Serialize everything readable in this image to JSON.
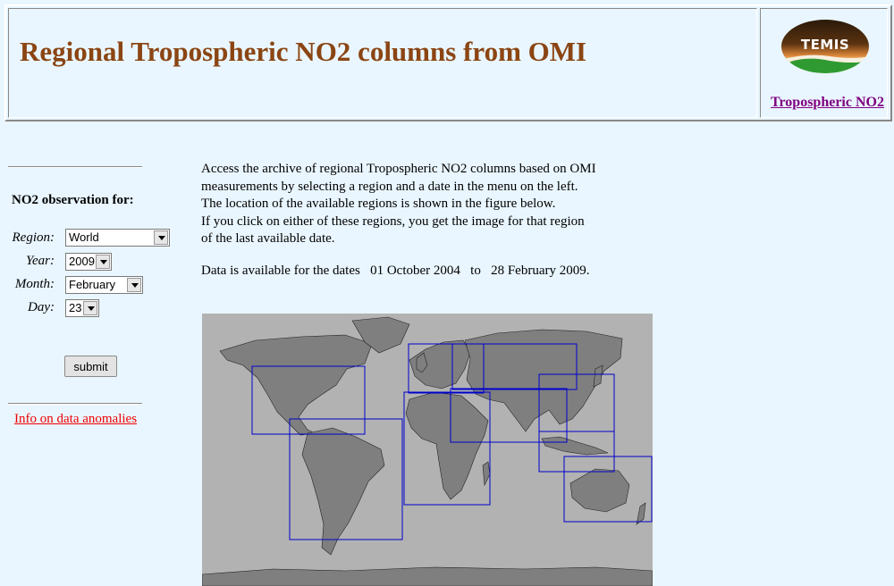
{
  "header": {
    "title": "Regional Tropospheric NO2 columns from OMI",
    "logo_text": "TEMIS",
    "link": "Tropospheric NO2"
  },
  "sidebar": {
    "title": "NO2 observation for:",
    "fields": {
      "region": {
        "label": "Region:",
        "value": "World"
      },
      "year": {
        "label": "Year:",
        "value": "2009"
      },
      "month": {
        "label": "Month:",
        "value": "February"
      },
      "day": {
        "label": "Day:",
        "value": "23"
      }
    },
    "submit_label": "submit",
    "info_link": "Info on data anomalies"
  },
  "main": {
    "intro": [
      "Access the archive of regional Tropospheric NO2 columns based on OMI",
      "measurements by selecting a region and a date in the menu on the left.",
      "The location of the available regions is shown in the figure below.",
      "If you click on either of these regions, you get the image for that region",
      "of the last available date."
    ],
    "availability": {
      "prefix": "Data is available for the dates",
      "start": "01 October 2004",
      "sep": "to",
      "end": "28 February 2009."
    }
  },
  "colors": {
    "title": "#8b4513",
    "visited_link": "#800080",
    "warning_link": "#ee0000",
    "page_bg": "#e9f6ff",
    "map_ocean": "#b2b2b2",
    "map_land": "#7f7f7f",
    "region_box": "#0000cc"
  }
}
